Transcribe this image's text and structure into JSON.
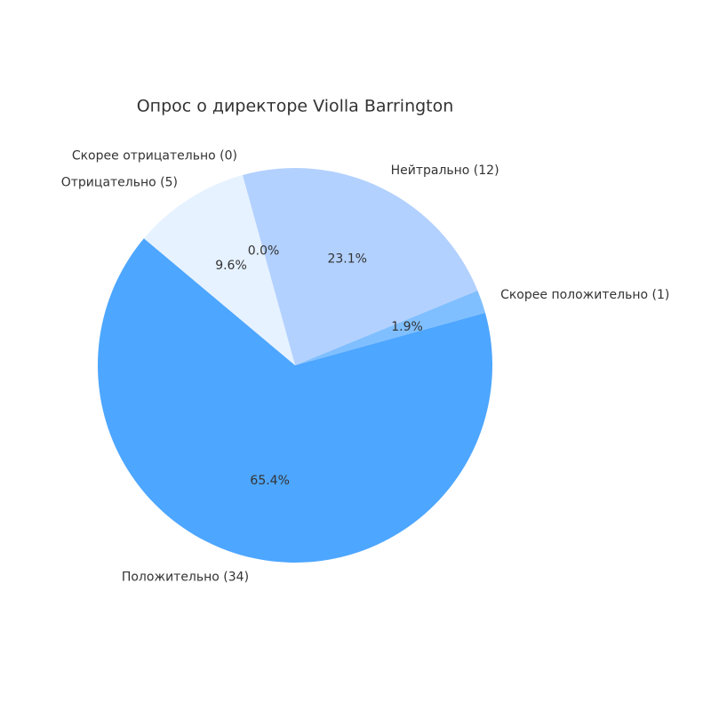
{
  "chart_data": {
    "type": "pie",
    "title": "Опрос о директоре Violla Barrington",
    "categories": [
      "Положительно (34)",
      "Скорее положительно (1)",
      "Нейтрально (12)",
      "Скорее отрицательно (0)",
      "Отрицательно (5)"
    ],
    "values": [
      65.4,
      1.9,
      23.1,
      0.0,
      9.6
    ],
    "value_labels": [
      "65.4%",
      "1.9%",
      "23.1%",
      "0.0%",
      "9.6%"
    ],
    "colors": [
      "#4da6ff",
      "#80bfff",
      "#b3d1ff",
      "#cce5ff",
      "#e6f2ff"
    ],
    "startangle": 140,
    "counterclock": true
  }
}
